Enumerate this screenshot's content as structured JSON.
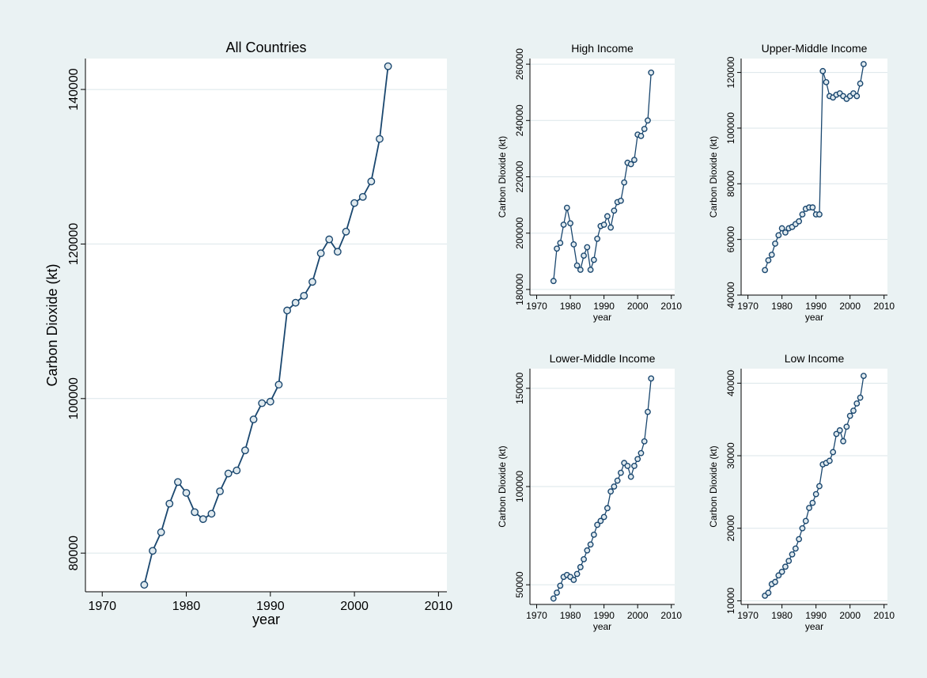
{
  "chart_data": [
    {
      "type": "line",
      "title": "All Countries",
      "xlabel": "year",
      "ylabel": "Carbon Dioxide (kt)",
      "xlim": [
        1968,
        2011
      ],
      "ylim": [
        75000,
        144000
      ],
      "xticks": [
        1970,
        1980,
        1990,
        2000,
        2010
      ],
      "yticks": [
        80000,
        100000,
        120000,
        140000
      ],
      "grid": true,
      "x": [
        1975,
        1976,
        1977,
        1978,
        1979,
        1980,
        1981,
        1982,
        1983,
        1984,
        1985,
        1986,
        1987,
        1988,
        1989,
        1990,
        1991,
        1992,
        1993,
        1994,
        1995,
        1996,
        1997,
        1998,
        1999,
        2000,
        2001,
        2002,
        2003,
        2004
      ],
      "values": [
        75900,
        80300,
        82700,
        86400,
        89200,
        87800,
        85300,
        84400,
        85100,
        88000,
        90300,
        90700,
        93300,
        97300,
        99400,
        99600,
        101800,
        111400,
        112400,
        113300,
        115100,
        118800,
        120600,
        119000,
        121600,
        125300,
        126100,
        128100,
        133600,
        143000
      ]
    },
    {
      "type": "line",
      "title": "High Income",
      "xlabel": "year",
      "ylabel": "Carbon Dioxide (kt)",
      "xlim": [
        1968,
        2011
      ],
      "ylim": [
        178000,
        262000
      ],
      "xticks": [
        1970,
        1980,
        1990,
        2000,
        2010
      ],
      "yticks": [
        180000,
        200000,
        220000,
        240000,
        260000
      ],
      "grid": true,
      "x": [
        1975,
        1976,
        1977,
        1978,
        1979,
        1980,
        1981,
        1982,
        1983,
        1984,
        1985,
        1986,
        1987,
        1988,
        1989,
        1990,
        1991,
        1992,
        1993,
        1994,
        1995,
        1996,
        1997,
        1998,
        1999,
        2000,
        2001,
        2002,
        2003,
        2004
      ],
      "values": [
        183000,
        194500,
        196500,
        203000,
        209000,
        203500,
        196000,
        188500,
        187000,
        192000,
        195000,
        187000,
        190500,
        198000,
        202500,
        203000,
        206000,
        202000,
        208000,
        211000,
        211500,
        218000,
        225000,
        224500,
        226000,
        235000,
        234500,
        237000,
        240000,
        257000
      ]
    },
    {
      "type": "line",
      "title": "Upper-Middle Income",
      "xlabel": "year",
      "ylabel": "Carbon Dioxide (kt)",
      "xlim": [
        1968,
        2011
      ],
      "ylim": [
        40000,
        125000
      ],
      "xticks": [
        1970,
        1980,
        1990,
        2000,
        2010
      ],
      "yticks": [
        40000,
        60000,
        80000,
        100000,
        120000
      ],
      "grid": true,
      "x": [
        1975,
        1976,
        1977,
        1978,
        1979,
        1980,
        1981,
        1982,
        1983,
        1984,
        1985,
        1986,
        1987,
        1988,
        1989,
        1990,
        1991,
        1992,
        1993,
        1994,
        1995,
        1996,
        1997,
        1998,
        1999,
        2000,
        2001,
        2002,
        2003,
        2004
      ],
      "values": [
        49000,
        52500,
        54500,
        58500,
        61500,
        64000,
        62500,
        64000,
        64500,
        65500,
        66500,
        69000,
        71000,
        71500,
        71500,
        69000,
        69000,
        120500,
        116500,
        111500,
        111000,
        112000,
        112500,
        111500,
        110500,
        111500,
        112500,
        111500,
        116000,
        123000
      ]
    },
    {
      "type": "line",
      "title": "Lower-Middle Income",
      "xlabel": "year",
      "ylabel": "Carbon Dioxide (kt)",
      "xlim": [
        1968,
        2011
      ],
      "ylim": [
        40000,
        160000
      ],
      "xticks": [
        1970,
        1980,
        1990,
        2000,
        2010
      ],
      "yticks": [
        50000,
        100000,
        150000
      ],
      "grid": true,
      "x": [
        1975,
        1976,
        1977,
        1978,
        1979,
        1980,
        1981,
        1982,
        1983,
        1984,
        1985,
        1986,
        1987,
        1988,
        1989,
        1990,
        1991,
        1992,
        1993,
        1994,
        1995,
        1996,
        1997,
        1998,
        1999,
        2000,
        2001,
        2002,
        2003,
        2004
      ],
      "values": [
        43000,
        46000,
        49500,
        54000,
        55000,
        54000,
        52500,
        55500,
        59000,
        63000,
        67500,
        70500,
        75500,
        80500,
        82500,
        84500,
        89000,
        97500,
        100000,
        103000,
        107000,
        112000,
        110500,
        105000,
        110500,
        114000,
        117000,
        123000,
        138000,
        155000
      ]
    },
    {
      "type": "line",
      "title": "Low Income",
      "xlabel": "year",
      "ylabel": "Carbon Dioxide (kt)",
      "xlim": [
        1968,
        2011
      ],
      "ylim": [
        9500,
        42000
      ],
      "xticks": [
        1970,
        1980,
        1990,
        2000,
        2010
      ],
      "yticks": [
        10000,
        20000,
        30000,
        40000
      ],
      "grid": true,
      "x": [
        1975,
        1976,
        1977,
        1978,
        1979,
        1980,
        1981,
        1982,
        1983,
        1984,
        1985,
        1986,
        1987,
        1988,
        1989,
        1990,
        1991,
        1992,
        1993,
        1994,
        1995,
        1996,
        1997,
        1998,
        1999,
        2000,
        2001,
        2002,
        2003,
        2004
      ],
      "values": [
        10700,
        11100,
        12300,
        12600,
        13500,
        14000,
        14700,
        15500,
        16400,
        17200,
        18500,
        20000,
        21000,
        22800,
        23500,
        24700,
        25800,
        28800,
        29000,
        29300,
        30500,
        33000,
        33500,
        32000,
        34000,
        35500,
        36200,
        37200,
        38000,
        41000
      ]
    }
  ]
}
